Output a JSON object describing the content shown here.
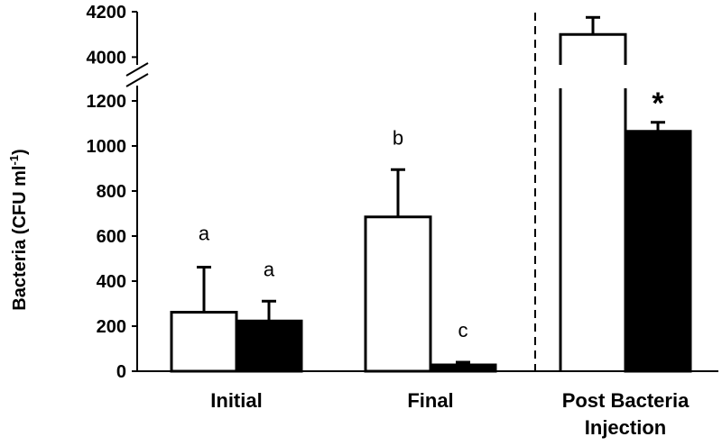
{
  "chart_data": {
    "type": "bar",
    "ylabel": {
      "main": "Bacteria (CFU ml",
      "superscript": "-1",
      "close": ")"
    },
    "categories": [
      {
        "lines": [
          "Initial"
        ]
      },
      {
        "lines": [
          "Final"
        ]
      },
      {
        "lines": [
          "Post Bacteria",
          "Injection"
        ]
      }
    ],
    "series": [
      {
        "fill": "#ffffff",
        "stroke": "#000000",
        "values": [
          262,
          685,
          4100
        ],
        "errors": [
          200,
          210,
          75
        ],
        "annotations": [
          "",
          "b",
          ""
        ]
      },
      {
        "fill": "#000000",
        "stroke": "#000000",
        "values": [
          223,
          28,
          1065
        ],
        "errors": [
          88,
          12,
          40
        ],
        "annotations": [
          "a",
          "c",
          "*"
        ]
      }
    ],
    "extra_annotations": [
      {
        "category": 0,
        "series": 0,
        "text": "a"
      }
    ],
    "axis": {
      "lower_range": [
        0,
        1300
      ],
      "upper_range": [
        3950,
        4200
      ],
      "lower_ticks": [
        "0",
        "200",
        "400",
        "600",
        "800",
        "1000",
        "1200"
      ],
      "upper_ticks": [
        "4000",
        "4200"
      ],
      "broken": true
    },
    "grid": false,
    "legend": "none",
    "divider_before_category": 2
  }
}
